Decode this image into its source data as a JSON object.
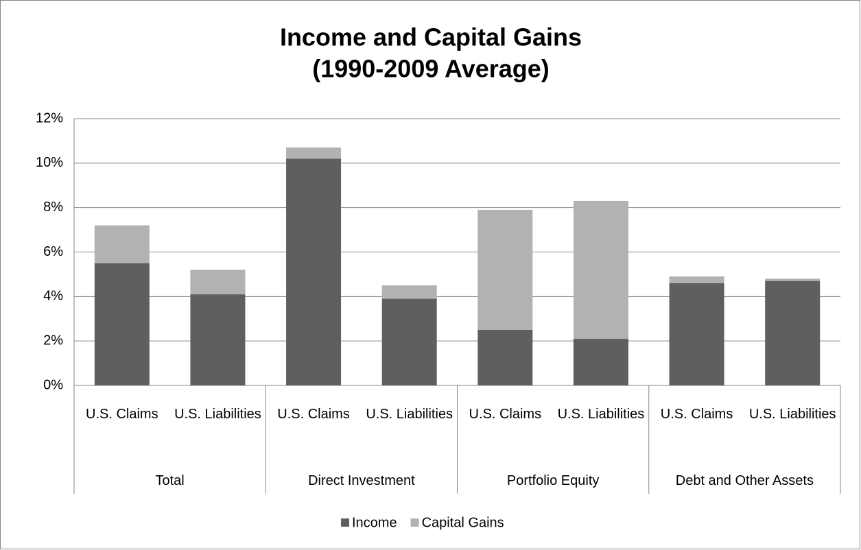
{
  "chart_data": {
    "type": "stacked_bar",
    "title": [
      "Income and Capital Gains",
      "(1990-2009 Average)"
    ],
    "categories": [
      "U.S. Claims",
      "U.S. Liabilities",
      "U.S. Claims",
      "U.S. Liabilities",
      "U.S. Claims",
      "U.S. Liabilities",
      "U.S. Claims",
      "U.S. Liabilities"
    ],
    "groups": [
      "Total",
      "Direct Investment",
      "Portfolio Equity",
      "Debt and Other Assets"
    ],
    "series": [
      {
        "name": "Income",
        "color": "#5f5f5f",
        "values": [
          5.5,
          4.1,
          10.2,
          3.9,
          2.5,
          2.1,
          4.6,
          4.7
        ]
      },
      {
        "name": "Capital Gains",
        "color": "#b2b2b2",
        "values": [
          1.7,
          1.1,
          0.5,
          0.6,
          5.4,
          6.2,
          0.3,
          0.1
        ]
      }
    ],
    "ylim": [
      0,
      12
    ],
    "yticks": [
      {
        "value": 0,
        "label": "0%"
      },
      {
        "value": 2,
        "label": "2%"
      },
      {
        "value": 4,
        "label": "4%"
      },
      {
        "value": 6,
        "label": "6%"
      },
      {
        "value": 8,
        "label": "8%"
      },
      {
        "value": 10,
        "label": "10%"
      },
      {
        "value": 12,
        "label": "12%"
      }
    ],
    "grid": true,
    "legend": "bottom"
  }
}
